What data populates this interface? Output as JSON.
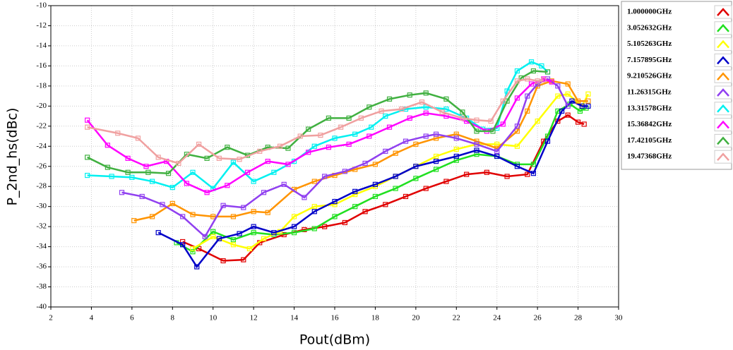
{
  "chart_data": {
    "type": "line",
    "xlabel": "Pout(dBm)",
    "ylabel": "P_2nd_hs(dBc)",
    "xlim": [
      2,
      30
    ],
    "ylim": [
      -40,
      -10
    ],
    "xticks": [
      2,
      4,
      6,
      8,
      10,
      12,
      14,
      16,
      18,
      20,
      22,
      24,
      26,
      28,
      30
    ],
    "yticks": [
      -10,
      -12,
      -14,
      -16,
      -18,
      -20,
      -22,
      -24,
      -26,
      -28,
      -30,
      -32,
      -34,
      -36,
      -38,
      -40
    ],
    "grid": true,
    "legend": "right",
    "series": [
      {
        "name": "1.000000GHz",
        "color": "#e00000",
        "x": [
          8.5,
          9.3,
          10.5,
          11.5,
          12.3,
          13.5,
          14.5,
          15.5,
          16.5,
          17.5,
          18.5,
          19.5,
          20.5,
          21.5,
          22.5,
          23.5,
          24.5,
          25.5,
          26.3,
          27,
          27.5,
          28,
          28.3
        ],
        "values": [
          -33.5,
          -34.2,
          -35.4,
          -35.3,
          -33.6,
          -32.8,
          -32.3,
          -32.0,
          -31.6,
          -30.5,
          -29.8,
          -29.0,
          -28.2,
          -27.5,
          -26.8,
          -26.6,
          -27.0,
          -26.8,
          -23.5,
          -21.5,
          -20.9,
          -21.6,
          -21.8
        ]
      },
      {
        "name": "3.052632GHz",
        "color": "#20e020",
        "x": [
          8.2,
          9,
          10,
          11,
          12,
          13,
          14,
          15,
          16,
          17,
          18,
          19,
          20,
          21,
          22,
          23,
          24,
          25,
          25.8,
          26.5,
          27,
          27.6,
          28.1,
          28.4
        ],
        "values": [
          -33.6,
          -34.5,
          -32.5,
          -33.3,
          -32.6,
          -32.8,
          -32.6,
          -32.2,
          -31.0,
          -30.0,
          -29.0,
          -28.2,
          -27.2,
          -26.3,
          -25.4,
          -24.8,
          -25.0,
          -25.8,
          -25.8,
          -23.0,
          -20.5,
          -19.8,
          -20.5,
          -20.2
        ]
      },
      {
        "name": "5.105263GHz",
        "color": "#ffff00",
        "x": [
          9,
          10,
          11,
          11.8,
          12.5,
          13.3,
          14,
          15,
          16,
          17,
          18,
          19,
          20,
          21,
          22,
          23,
          24,
          25,
          26,
          27,
          27.5,
          28.2,
          28.5
        ],
        "values": [
          -34.2,
          -33.0,
          -33.8,
          -34.2,
          -33.2,
          -32.5,
          -31.0,
          -30.0,
          -29.8,
          -28.8,
          -28.0,
          -27.0,
          -26.0,
          -25.0,
          -24.3,
          -23.8,
          -23.8,
          -24.0,
          -21.5,
          -19.0,
          -18.8,
          -20.0,
          -18.8
        ]
      },
      {
        "name": "7.157895GHz",
        "color": "#0000c8",
        "x": [
          7.3,
          8.5,
          9.2,
          10.3,
          11.3,
          12,
          13,
          14,
          15,
          16,
          17,
          18,
          19,
          20,
          21,
          22,
          23,
          24,
          25,
          25.8,
          26.5,
          27.2,
          27.7,
          28.2,
          28.5
        ],
        "values": [
          -32.6,
          -33.8,
          -36.0,
          -33.2,
          -32.7,
          -32.0,
          -32.6,
          -32.0,
          -30.5,
          -29.5,
          -28.5,
          -27.8,
          -27.0,
          -26.0,
          -25.5,
          -25.0,
          -24.4,
          -25.0,
          -26.0,
          -26.7,
          -23.5,
          -20.5,
          -19.5,
          -20.0,
          -20.0
        ]
      },
      {
        "name": "9.210526GHz",
        "color": "#ff9400",
        "x": [
          6.1,
          7,
          8,
          9,
          10,
          11,
          12,
          12.7,
          14,
          15,
          16,
          17,
          18,
          19,
          20,
          21,
          22,
          23,
          24,
          25,
          25.5,
          26,
          26.7,
          27.5,
          28,
          28.5
        ],
        "values": [
          -31.4,
          -31.0,
          -29.7,
          -30.8,
          -31.0,
          -31.0,
          -30.5,
          -30.6,
          -28.3,
          -27.5,
          -26.9,
          -26.3,
          -25.8,
          -24.7,
          -23.8,
          -23.2,
          -22.8,
          -23.5,
          -24.2,
          -22.5,
          -20.5,
          -18.0,
          -17.5,
          -17.8,
          -19.5,
          -19.5
        ]
      },
      {
        "name": "11.26315GHz",
        "color": "#9040f0",
        "x": [
          5.5,
          6.5,
          7.5,
          8.5,
          9.6,
          10.5,
          11.5,
          12.5,
          13.5,
          14.5,
          15.5,
          16.5,
          17.5,
          18.5,
          19.5,
          20.5,
          21,
          22,
          23,
          24,
          25,
          25.5,
          26,
          26.5,
          27,
          27.5
        ],
        "values": [
          -28.6,
          -29.0,
          -29.8,
          -31.0,
          -33.0,
          -29.9,
          -30.1,
          -28.6,
          -27.8,
          -29.1,
          -27.0,
          -26.5,
          -25.7,
          -24.5,
          -23.5,
          -23.0,
          -22.8,
          -23.2,
          -23.8,
          -24.5,
          -22.0,
          -19.0,
          -17.8,
          -17.3,
          -18.0,
          -20.0
        ]
      },
      {
        "name": "13.31578GHz",
        "color": "#00f0f0",
        "x": [
          3.8,
          5,
          6,
          7,
          8,
          9,
          10,
          11,
          12,
          13,
          14,
          15,
          16,
          17,
          17.8,
          18.5,
          19.5,
          20.5,
          21.5,
          22.5,
          23.3,
          24,
          24.5,
          25,
          25.7,
          26.2,
          26.5
        ],
        "values": [
          -26.9,
          -27.0,
          -27.1,
          -27.5,
          -28.1,
          -26.6,
          -28.2,
          -25.6,
          -27.5,
          -26.6,
          -25.5,
          -24.0,
          -23.2,
          -22.8,
          -22.1,
          -21.0,
          -20.3,
          -20.1,
          -20.3,
          -21.2,
          -22.3,
          -22.2,
          -18.5,
          -16.5,
          -15.6,
          -16.0,
          -16.6
        ]
      },
      {
        "name": "15.36842GHz",
        "color": "#ff00ff",
        "x": [
          3.8,
          4.8,
          5.8,
          6.7,
          7.7,
          8.7,
          9.7,
          10.7,
          11.7,
          12.7,
          13.7,
          14.7,
          15.7,
          16.7,
          17.7,
          18.7,
          19.7,
          20.5,
          21.5,
          22.5,
          23.5,
          24.3,
          25,
          25.7,
          26.3,
          26.7
        ],
        "values": [
          -21.4,
          -23.9,
          -25.2,
          -26.0,
          -25.5,
          -27.7,
          -28.6,
          -27.9,
          -26.6,
          -25.5,
          -25.8,
          -24.6,
          -24.1,
          -23.8,
          -23.0,
          -22.1,
          -21.2,
          -20.7,
          -21.0,
          -21.5,
          -22.5,
          -21.8,
          -19.2,
          -17.8,
          -17.3,
          -17.6
        ]
      },
      {
        "name": "17.42105GHz",
        "color": "#40b040",
        "x": [
          3.8,
          4.8,
          5.8,
          6.8,
          7.8,
          8.7,
          9.7,
          10.7,
          11.7,
          12.7,
          13.7,
          14.7,
          15.7,
          16.7,
          17.7,
          18.7,
          19.7,
          20.5,
          21.5,
          22.3,
          23,
          23.8,
          24.5,
          25.2,
          25.8,
          26.5
        ],
        "values": [
          -25.1,
          -26.1,
          -26.6,
          -26.6,
          -26.7,
          -24.8,
          -25.2,
          -24.1,
          -24.9,
          -24.1,
          -24.2,
          -22.3,
          -21.2,
          -21.2,
          -20.1,
          -19.3,
          -18.9,
          -18.7,
          -19.3,
          -20.6,
          -22.5,
          -22.5,
          -19.5,
          -17.2,
          -16.5,
          -16.6
        ]
      },
      {
        "name": "19.47368GHz",
        "color": "#f0a0a0",
        "x": [
          3.8,
          5.3,
          6.3,
          7.3,
          8.3,
          9.3,
          10.3,
          11.3,
          12.3,
          13.3,
          14.3,
          15.3,
          16.3,
          17.3,
          18.3,
          19.3,
          20.3,
          21.3,
          22.3,
          23,
          23.7,
          24.3,
          25,
          25.5,
          26,
          26.3
        ],
        "values": [
          -22.1,
          -22.7,
          -23.2,
          -25.1,
          -25.7,
          -23.8,
          -25.2,
          -25.3,
          -24.5,
          -24.0,
          -23.0,
          -22.9,
          -22.1,
          -21.2,
          -20.5,
          -20.3,
          -19.6,
          -20.6,
          -21.2,
          -21.4,
          -21.5,
          -19.5,
          -17.5,
          -17.3,
          -17.5,
          -17.4
        ]
      }
    ]
  }
}
